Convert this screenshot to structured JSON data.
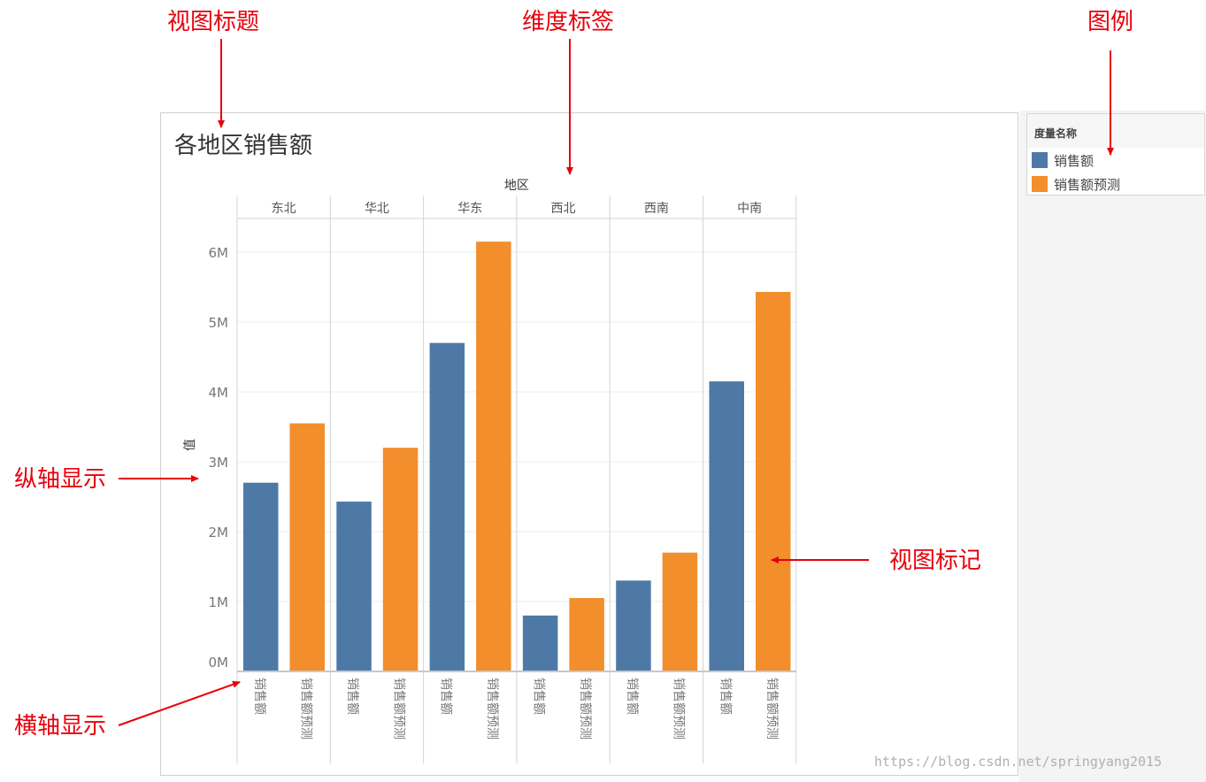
{
  "annotations": {
    "view_title": "视图标题",
    "dimension_label": "维度标签",
    "legend": "图例",
    "vertical_axis": "纵轴显示",
    "view_marks": "视图标记",
    "horizontal_axis": "横轴显示"
  },
  "legend": {
    "title": "度量名称",
    "items": [
      {
        "label": "销售额",
        "color": "#4e79a7"
      },
      {
        "label": "销售额预测",
        "color": "#f28e2b"
      }
    ]
  },
  "watermark": "https://blog.csdn.net/springyang2015",
  "chart_data": {
    "type": "bar",
    "title": "各地区销售额",
    "column_header": "地区",
    "ylabel": "值",
    "categories": [
      "东北",
      "华北",
      "华东",
      "西北",
      "西南",
      "中南"
    ],
    "series": [
      {
        "name": "销售额",
        "color": "#4e79a7",
        "values": [
          2.7,
          2.43,
          4.7,
          0.8,
          1.3,
          4.15
        ]
      },
      {
        "name": "销售额预测",
        "color": "#f28e2b",
        "values": [
          3.55,
          3.2,
          6.15,
          1.05,
          1.7,
          5.43
        ]
      }
    ],
    "ylim": [
      0,
      6.6
    ],
    "yticks": [
      {
        "value": 0,
        "label": "0M"
      },
      {
        "value": 1,
        "label": "1M"
      },
      {
        "value": 2,
        "label": "2M"
      },
      {
        "value": 3,
        "label": "3M"
      },
      {
        "value": 4,
        "label": "4M"
      },
      {
        "value": 5,
        "label": "5M"
      },
      {
        "value": 6,
        "label": "6M"
      }
    ],
    "grid": true,
    "legend_position": "right"
  }
}
